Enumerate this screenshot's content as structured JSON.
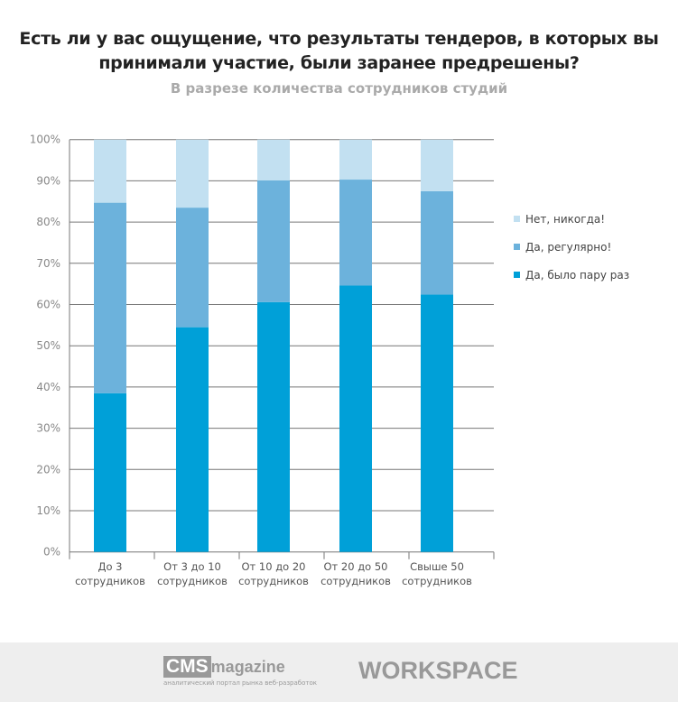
{
  "chart_data": {
    "type": "bar",
    "stacked": true,
    "title": "Есть ли у вас ощущение, что результаты тендеров, в которых вы принимали участие, были заранее предрешены?",
    "subtitle": "В разрезе количества сотрудников студий",
    "categories": [
      [
        "До 3",
        "сотрудников"
      ],
      [
        "От 3 до 10",
        "сотрудников"
      ],
      [
        "От 10 до 20",
        "сотрудников"
      ],
      [
        "От 20 до 50",
        "сотрудников"
      ],
      [
        "Свыше 50",
        "сотрудников"
      ]
    ],
    "series": [
      {
        "name": "Да, было пару раз",
        "color": "#00a0d8",
        "values": [
          38.5,
          54.5,
          60.6,
          64.6,
          62.4
        ]
      },
      {
        "name": "Да, регулярно!",
        "color": "#6cb2dc",
        "values": [
          46.2,
          29.0,
          29.5,
          25.7,
          25.1
        ]
      },
      {
        "name": "Нет, никогда!",
        "color": "#c2e0f1",
        "values": [
          15.3,
          16.5,
          9.9,
          9.7,
          12.5
        ]
      }
    ],
    "yticks": [
      "0%",
      "10%",
      "20%",
      "30%",
      "40%",
      "50%",
      "60%",
      "70%",
      "80%",
      "90%",
      "100%"
    ],
    "ylim": [
      0,
      100
    ],
    "grid": true,
    "legend_position": "right"
  },
  "footer": {
    "cms_logo": "CMS",
    "cms_logo_word": "magazine",
    "cms_tagline": "аналитический портал рынка веб-разработок",
    "workspace_logo": "WORKSPACE"
  }
}
